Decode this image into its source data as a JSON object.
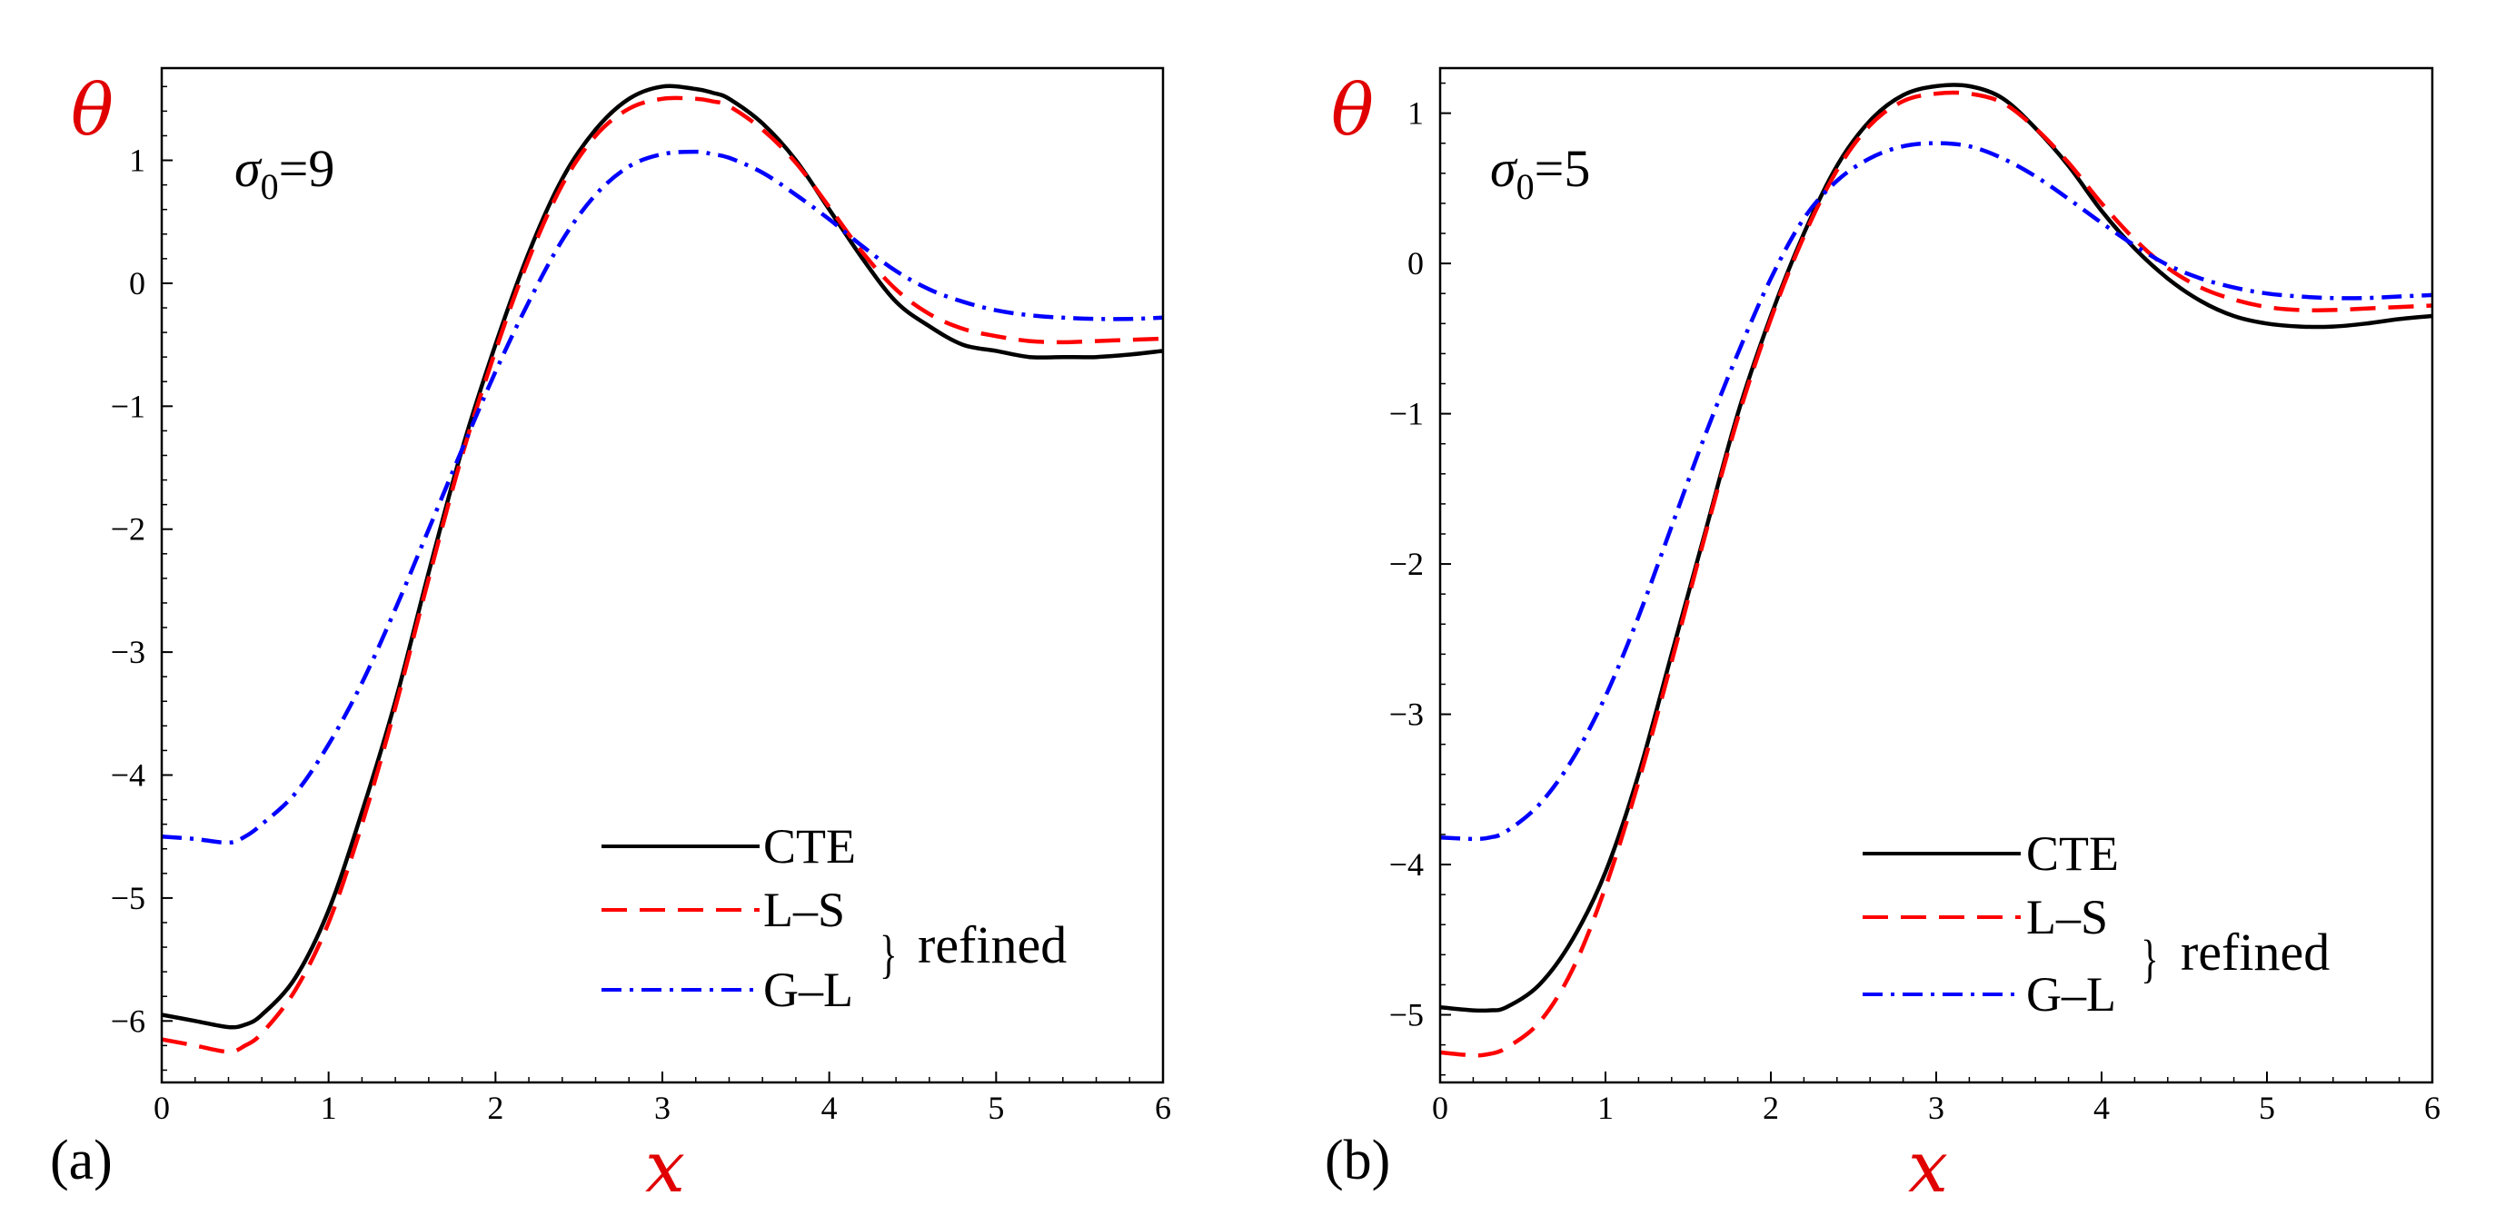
{
  "colors": {
    "cte": "#000000",
    "ls": "#ff0000",
    "gl": "#0000ff",
    "axis_title": "#e00000"
  },
  "legend": {
    "cte": "CTE",
    "ls": "L–S",
    "gl": "G–L",
    "brace": "}",
    "refined": "refined"
  },
  "chart_data": [
    {
      "type": "line",
      "panel_label": "(a)",
      "annotation": {
        "base": "σ",
        "sub": "0",
        "rest": "=9"
      },
      "xlabel": "x",
      "ylabel": "θ",
      "xlim": [
        0,
        6
      ],
      "ylim": [
        -6.5,
        1.75
      ],
      "xticks": [
        0,
        1,
        2,
        3,
        4,
        5,
        6
      ],
      "yticks": [
        1,
        0,
        -1,
        -2,
        -3,
        -4,
        -5,
        -6
      ],
      "xtick_labels": [
        "0",
        "1",
        "2",
        "3",
        "4",
        "5",
        "6"
      ],
      "ytick_labels": [
        "1",
        "0",
        "−1",
        "−2",
        "−3",
        "−4",
        "−5",
        "−6"
      ],
      "legend_position": "bottom-right",
      "series": [
        {
          "name": "CTE",
          "style": "solid",
          "x": [
            0,
            0.2,
            0.4,
            0.5,
            0.6,
            0.8,
            1.0,
            1.2,
            1.4,
            1.6,
            1.8,
            2.0,
            2.2,
            2.4,
            2.6,
            2.8,
            3.0,
            3.2,
            3.3,
            3.4,
            3.6,
            3.8,
            4.0,
            4.2,
            4.4,
            4.6,
            4.8,
            5.0,
            5.2,
            5.4,
            5.6,
            5.8,
            6.0
          ],
          "y": [
            -5.95,
            -6.0,
            -6.05,
            -6.03,
            -5.95,
            -5.65,
            -5.1,
            -4.3,
            -3.4,
            -2.35,
            -1.35,
            -0.5,
            0.25,
            0.85,
            1.25,
            1.5,
            1.6,
            1.58,
            1.55,
            1.5,
            1.3,
            1.0,
            0.6,
            0.2,
            -0.15,
            -0.35,
            -0.5,
            -0.55,
            -0.6,
            -0.6,
            -0.6,
            -0.58,
            -0.55
          ]
        },
        {
          "name": "L–S",
          "style": "dashed",
          "x": [
            0,
            0.2,
            0.4,
            0.5,
            0.6,
            0.8,
            1.0,
            1.2,
            1.4,
            1.6,
            1.8,
            2.0,
            2.2,
            2.4,
            2.6,
            2.8,
            3.0,
            3.2,
            3.3,
            3.4,
            3.6,
            3.8,
            4.0,
            4.2,
            4.4,
            4.6,
            4.8,
            5.0,
            5.2,
            5.4,
            5.6,
            5.8,
            6.0
          ],
          "y": [
            -6.15,
            -6.2,
            -6.25,
            -6.2,
            -6.1,
            -5.75,
            -5.2,
            -4.4,
            -3.45,
            -2.4,
            -1.4,
            -0.55,
            0.2,
            0.8,
            1.2,
            1.42,
            1.5,
            1.5,
            1.48,
            1.44,
            1.25,
            0.98,
            0.62,
            0.25,
            -0.05,
            -0.25,
            -0.37,
            -0.43,
            -0.47,
            -0.48,
            -0.47,
            -0.46,
            -0.45
          ]
        },
        {
          "name": "G–L",
          "style": "dashdot",
          "x": [
            0,
            0.2,
            0.4,
            0.5,
            0.6,
            0.8,
            1.0,
            1.2,
            1.4,
            1.6,
            1.8,
            2.0,
            2.2,
            2.4,
            2.6,
            2.8,
            3.0,
            3.2,
            3.3,
            3.4,
            3.6,
            3.8,
            4.0,
            4.2,
            4.4,
            4.6,
            4.8,
            5.0,
            5.2,
            5.4,
            5.6,
            5.8,
            6.0
          ],
          "y": [
            -4.5,
            -4.52,
            -4.55,
            -4.5,
            -4.4,
            -4.15,
            -3.75,
            -3.25,
            -2.65,
            -2.0,
            -1.35,
            -0.72,
            -0.15,
            0.35,
            0.72,
            0.95,
            1.05,
            1.07,
            1.05,
            1.02,
            0.9,
            0.72,
            0.52,
            0.3,
            0.1,
            -0.05,
            -0.15,
            -0.22,
            -0.26,
            -0.28,
            -0.29,
            -0.29,
            -0.28
          ]
        }
      ]
    },
    {
      "type": "line",
      "panel_label": "(b)",
      "annotation": {
        "base": "σ",
        "sub": "0",
        "rest": "=5"
      },
      "xlabel": "x",
      "ylabel": "θ",
      "xlim": [
        0,
        6
      ],
      "ylim": [
        -5.45,
        1.3
      ],
      "xticks": [
        0,
        1,
        2,
        3,
        4,
        5,
        6
      ],
      "yticks": [
        1,
        0,
        -1,
        -2,
        -3,
        -4,
        -5
      ],
      "xtick_labels": [
        "0",
        "1",
        "2",
        "3",
        "4",
        "5",
        "6"
      ],
      "ytick_labels": [
        "1",
        "0",
        "−1",
        "−2",
        "−3",
        "−4",
        "−5"
      ],
      "legend_position": "bottom-right",
      "series": [
        {
          "name": "CTE",
          "style": "solid",
          "x": [
            0,
            0.2,
            0.3,
            0.4,
            0.6,
            0.8,
            1.0,
            1.2,
            1.4,
            1.6,
            1.8,
            2.0,
            2.2,
            2.4,
            2.6,
            2.8,
            3.0,
            3.2,
            3.4,
            3.6,
            3.8,
            4.0,
            4.2,
            4.4,
            4.6,
            4.8,
            5.0,
            5.2,
            5.4,
            5.6,
            5.8,
            6.0
          ],
          "y": [
            -4.95,
            -4.97,
            -4.97,
            -4.95,
            -4.8,
            -4.5,
            -4.05,
            -3.4,
            -2.6,
            -1.8,
            -1.0,
            -0.35,
            0.2,
            0.65,
            0.95,
            1.12,
            1.18,
            1.18,
            1.1,
            0.9,
            0.65,
            0.35,
            0.1,
            -0.1,
            -0.25,
            -0.35,
            -0.4,
            -0.42,
            -0.42,
            -0.4,
            -0.37,
            -0.35
          ]
        },
        {
          "name": "L–S",
          "style": "dashed",
          "x": [
            0,
            0.2,
            0.3,
            0.4,
            0.6,
            0.8,
            1.0,
            1.2,
            1.4,
            1.6,
            1.8,
            2.0,
            2.2,
            2.4,
            2.6,
            2.8,
            3.0,
            3.2,
            3.4,
            3.6,
            3.8,
            4.0,
            4.2,
            4.4,
            4.6,
            4.8,
            5.0,
            5.2,
            5.4,
            5.6,
            5.8,
            6.0
          ],
          "y": [
            -5.25,
            -5.27,
            -5.26,
            -5.22,
            -5.05,
            -4.7,
            -4.15,
            -3.45,
            -2.65,
            -1.82,
            -1.03,
            -0.37,
            0.18,
            0.62,
            0.92,
            1.08,
            1.13,
            1.13,
            1.07,
            0.9,
            0.67,
            0.4,
            0.16,
            -0.03,
            -0.16,
            -0.24,
            -0.29,
            -0.31,
            -0.31,
            -0.3,
            -0.29,
            -0.28
          ]
        },
        {
          "name": "G–L",
          "style": "dashdot",
          "x": [
            0,
            0.2,
            0.3,
            0.4,
            0.6,
            0.8,
            1.0,
            1.2,
            1.4,
            1.6,
            1.8,
            2.0,
            2.2,
            2.4,
            2.6,
            2.8,
            3.0,
            3.2,
            3.4,
            3.6,
            3.8,
            4.0,
            4.2,
            4.4,
            4.6,
            4.8,
            5.0,
            5.2,
            5.4,
            5.6,
            5.8,
            6.0
          ],
          "y": [
            -3.82,
            -3.83,
            -3.82,
            -3.78,
            -3.6,
            -3.3,
            -2.88,
            -2.35,
            -1.75,
            -1.15,
            -0.6,
            -0.1,
            0.3,
            0.55,
            0.7,
            0.78,
            0.8,
            0.78,
            0.7,
            0.58,
            0.43,
            0.27,
            0.12,
            -0.01,
            -0.1,
            -0.16,
            -0.2,
            -0.22,
            -0.23,
            -0.23,
            -0.22,
            -0.21
          ]
        }
      ]
    }
  ]
}
